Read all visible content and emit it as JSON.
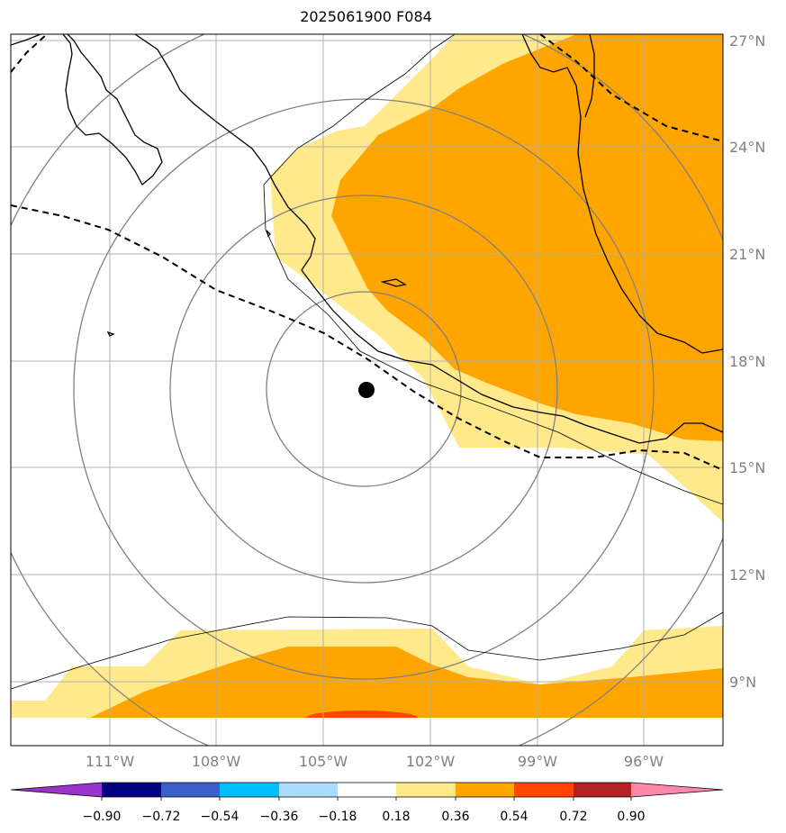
{
  "title": "2025061900 F084",
  "map": {
    "lat_labels": [
      "27°N",
      "24°N",
      "21°N",
      "18°N",
      "15°N",
      "12°N",
      "9°N"
    ],
    "lon_labels": [
      "111°W",
      "108°W",
      "105°W",
      "102°W",
      "99°W",
      "96°W"
    ],
    "storm_center": {
      "lon": -103.8,
      "lat": 17.2
    }
  },
  "colorbar": {
    "ticks": [
      "−0.90",
      "−0.72",
      "−0.54",
      "−0.36",
      "−0.18",
      "0.18",
      "0.36",
      "0.54",
      "0.72",
      "0.90"
    ],
    "colors": [
      "#9933cc",
      "#000080",
      "#3a5fcd",
      "#00bfff",
      "#aadcff",
      "#ffffff",
      "#ffe98a",
      "#ffa500",
      "#ff4500",
      "#b22222",
      "#ff88aa"
    ]
  },
  "fill_colors": {
    "light": "#ffe98a",
    "orange": "#ffa500",
    "red": "#ff4500"
  }
}
